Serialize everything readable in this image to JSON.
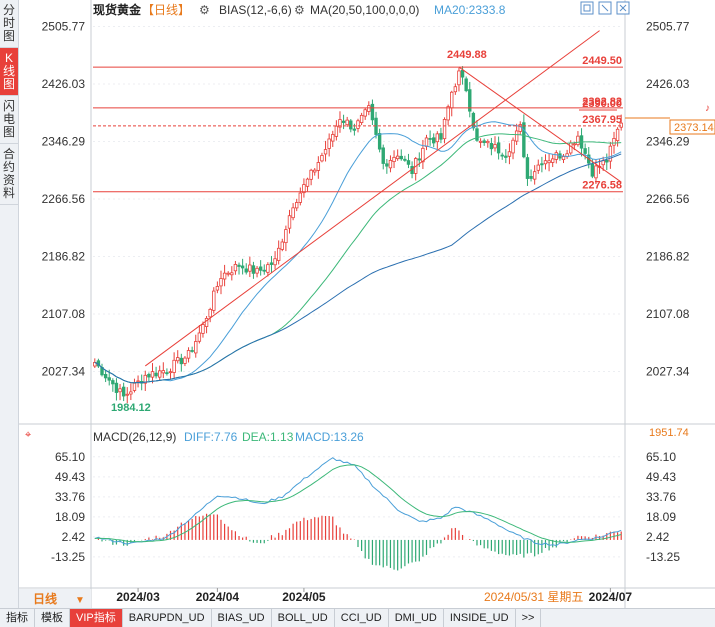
{
  "side_tabs": [
    {
      "label": "分时图",
      "active": false
    },
    {
      "label": "K线图",
      "active": true
    },
    {
      "label": "闪电图",
      "active": false
    },
    {
      "label": "合约资料",
      "active": false
    }
  ],
  "header": {
    "symbol": "现货黄金",
    "period_tag": "【日线】",
    "bias": "BIAS(12,-6,6)",
    "ma": "MA(20,50,100,0,0,0)",
    "ma20": "MA20:2333.8"
  },
  "macd_header": {
    "name": "MACD(26,12,9)",
    "diff": "DIFF:7.76",
    "dea": "DEA:1.13",
    "macd": "MACD:13.26"
  },
  "period_button": "日线",
  "date_readout": "2024/05/31 星期五",
  "price_tag": "2373.14",
  "macd_tag": "1951.74",
  "bottom_tabs": [
    "指标",
    "模板",
    "VIP指标",
    "BARUPDN_UD",
    "BIAS_UD",
    "BOLL_UD",
    "CCI_UD",
    "DMI_UD",
    "INSIDE_UD",
    ">>"
  ],
  "colors": {
    "up": "#e8403a",
    "down": "#2ea873",
    "ma20": "#4a9fd8",
    "ma50": "#3cb879",
    "ma100": "#2a6fb0"
  },
  "chart_data": [
    {
      "type": "candlestick",
      "yticks": [
        2027.34,
        2107.08,
        2186.82,
        2266.56,
        2346.29,
        2426.03,
        2505.77
      ],
      "ylim": [
        1960,
        2512
      ],
      "xticks": [
        "2024/03",
        "2024/04",
        "2024/05",
        "2024/07"
      ],
      "candles_count": 147,
      "marks": {
        "low": 1984.12,
        "high": 2449.88
      },
      "hlines": [
        {
          "label": "2449.50",
          "value": 2449.5
        },
        {
          "label": "2392.82",
          "value": 2392.82
        },
        {
          "label": "2390.00",
          "value": 2390.0
        },
        {
          "label": "2367.95",
          "value": 2367.95
        },
        {
          "label": "2276.58",
          "value": 2276.58
        }
      ]
    },
    {
      "type": "macd",
      "yticks": [
        -13.25,
        2.42,
        18.09,
        33.76,
        49.43,
        65.1
      ],
      "ylim": [
        -22,
        72
      ],
      "series": [
        {
          "name": "DIFF",
          "last": 7.76
        },
        {
          "name": "DEA",
          "last": 1.13
        },
        {
          "name": "MACD",
          "last": 13.26
        }
      ]
    }
  ]
}
